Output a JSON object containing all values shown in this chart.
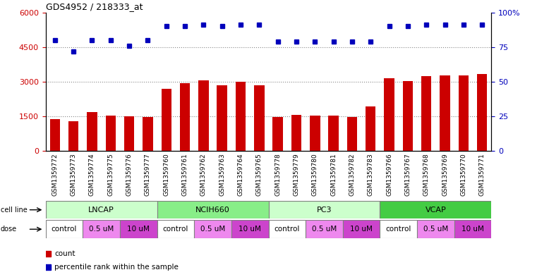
{
  "title": "GDS4952 / 218333_at",
  "samples": [
    "GSM1359772",
    "GSM1359773",
    "GSM1359774",
    "GSM1359775",
    "GSM1359776",
    "GSM1359777",
    "GSM1359760",
    "GSM1359761",
    "GSM1359762",
    "GSM1359763",
    "GSM1359764",
    "GSM1359765",
    "GSM1359778",
    "GSM1359779",
    "GSM1359780",
    "GSM1359781",
    "GSM1359782",
    "GSM1359783",
    "GSM1359766",
    "GSM1359767",
    "GSM1359768",
    "GSM1359769",
    "GSM1359770",
    "GSM1359771"
  ],
  "counts": [
    1380,
    1280,
    1700,
    1520,
    1500,
    1480,
    2700,
    2950,
    3050,
    2850,
    3000,
    2850,
    1480,
    1570,
    1540,
    1530,
    1480,
    1920,
    3150,
    3030,
    3250,
    3280,
    3260,
    3320
  ],
  "percentile_ranks": [
    80,
    72,
    80,
    80,
    76,
    80,
    90,
    90,
    91,
    90,
    91,
    91,
    79,
    79,
    79,
    79,
    79,
    79,
    90,
    90,
    91,
    91,
    91,
    91
  ],
  "bar_color": "#cc0000",
  "dot_color": "#0000bb",
  "ylim_left": [
    0,
    6000
  ],
  "ylim_right": [
    0,
    100
  ],
  "yticks_left": [
    0,
    1500,
    3000,
    4500,
    6000
  ],
  "yticks_right": [
    0,
    25,
    50,
    75,
    100
  ],
  "cell_lines": [
    {
      "label": "LNCAP",
      "start": 0,
      "end": 6,
      "color": "#ccffcc"
    },
    {
      "label": "NCIH660",
      "start": 6,
      "end": 12,
      "color": "#88ee88"
    },
    {
      "label": "PC3",
      "start": 12,
      "end": 18,
      "color": "#ccffcc"
    },
    {
      "label": "VCAP",
      "start": 18,
      "end": 24,
      "color": "#44cc44"
    }
  ],
  "doses": [
    {
      "label": "control",
      "start": 0,
      "end": 2,
      "color": "#ffffff"
    },
    {
      "label": "0.5 uM",
      "start": 2,
      "end": 4,
      "color": "#ee88ee"
    },
    {
      "label": "10 uM",
      "start": 4,
      "end": 6,
      "color": "#cc44cc"
    },
    {
      "label": "control",
      "start": 6,
      "end": 8,
      "color": "#ffffff"
    },
    {
      "label": "0.5 uM",
      "start": 8,
      "end": 10,
      "color": "#ee88ee"
    },
    {
      "label": "10 uM",
      "start": 10,
      "end": 12,
      "color": "#cc44cc"
    },
    {
      "label": "control",
      "start": 12,
      "end": 14,
      "color": "#ffffff"
    },
    {
      "label": "0.5 uM",
      "start": 14,
      "end": 16,
      "color": "#ee88ee"
    },
    {
      "label": "10 uM",
      "start": 16,
      "end": 18,
      "color": "#cc44cc"
    },
    {
      "label": "control",
      "start": 18,
      "end": 20,
      "color": "#ffffff"
    },
    {
      "label": "0.5 uM",
      "start": 20,
      "end": 22,
      "color": "#ee88ee"
    },
    {
      "label": "10 uM",
      "start": 22,
      "end": 24,
      "color": "#cc44cc"
    }
  ],
  "legend_items": [
    {
      "label": "count",
      "color": "#cc0000"
    },
    {
      "label": "percentile rank within the sample",
      "color": "#0000bb"
    }
  ],
  "grid_yticks": [
    1500,
    3000,
    4500
  ],
  "grid_color": "#888888",
  "bg_color": "#ffffff",
  "xticklabel_bg": "#dddddd"
}
